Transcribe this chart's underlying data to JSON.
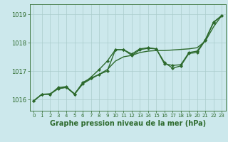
{
  "background_color": "#cce8ec",
  "grid_color": "#aacccc",
  "line_color": "#2d6a2d",
  "marker_color": "#2d6a2d",
  "xlabel": "Graphe pression niveau de la mer (hPa)",
  "xlabel_fontsize": 7,
  "yticks": [
    1016,
    1017,
    1018,
    1019
  ],
  "xticks": [
    0,
    1,
    2,
    3,
    4,
    5,
    6,
    7,
    8,
    9,
    10,
    11,
    12,
    13,
    14,
    15,
    16,
    17,
    18,
    19,
    20,
    21,
    22,
    23
  ],
  "ylim": [
    1015.6,
    1019.35
  ],
  "xlim": [
    -0.5,
    23.5
  ],
  "series": [
    {
      "y": [
        1015.95,
        1016.18,
        1016.2,
        1016.38,
        1016.43,
        1016.2,
        1016.55,
        1016.72,
        1016.88,
        1017.05,
        1017.35,
        1017.5,
        1017.55,
        1017.65,
        1017.7,
        1017.72,
        1017.72,
        1017.74,
        1017.76,
        1017.78,
        1017.82,
        1018.05,
        1018.55,
        1018.95
      ],
      "markers": false,
      "linewidth": 1.0
    },
    {
      "y": [
        1015.95,
        1016.18,
        1016.18,
        1016.38,
        1016.42,
        1016.18,
        1016.55,
        1016.78,
        1017.05,
        1017.35,
        1017.75,
        1017.75,
        1017.6,
        1017.78,
        1017.82,
        1017.78,
        1017.25,
        1017.2,
        1017.22,
        1017.65,
        1017.7,
        1018.1,
        1018.72,
        1018.95
      ],
      "markers": true,
      "linewidth": 1.0
    },
    {
      "y": [
        1015.95,
        1016.18,
        1016.18,
        1016.42,
        1016.45,
        1016.18,
        1016.6,
        1016.75,
        1016.88,
        1017.0,
        1017.75,
        1017.75,
        1017.55,
        1017.75,
        1017.8,
        1017.78,
        1017.3,
        1017.1,
        1017.18,
        1017.62,
        1017.65,
        1018.08,
        1018.7,
        1018.95
      ],
      "markers": true,
      "linewidth": 1.0
    }
  ]
}
